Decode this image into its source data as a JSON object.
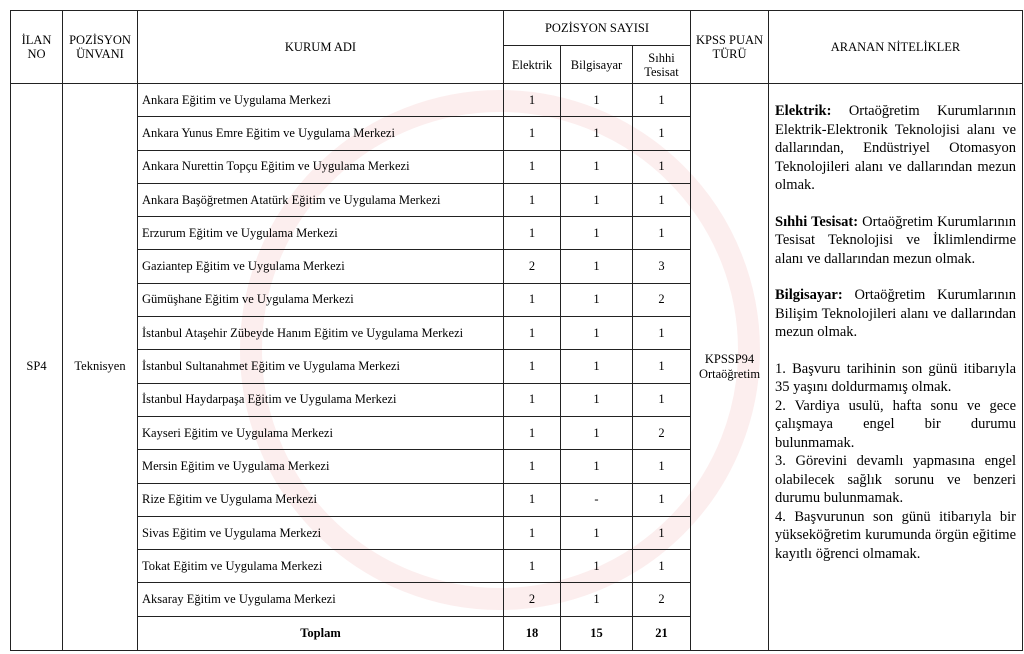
{
  "headers": {
    "ilan_no": "İLAN NO",
    "pozisyon_unvani": "POZİSYON ÜNVANI",
    "kurum_adi": "KURUM ADI",
    "pozisyon_sayisi": "POZİSYON SAYISI",
    "elektrik": "Elektrik",
    "bilgisayar": "Bilgisayar",
    "sihhi_tesisat": "Sıhhi Tesisat",
    "kpss": "KPSS PUAN TÜRÜ",
    "nitelikler": "ARANAN NİTELİKLER"
  },
  "ilan_no": "SP4",
  "pozisyon": "Teknisyen",
  "kpss": "KPSSP94 Ortaöğretim",
  "rows": [
    {
      "kurum": "Ankara Eğitim ve Uygulama Merkezi",
      "elektrik": "1",
      "bilgisayar": "1",
      "sihhi": "1"
    },
    {
      "kurum": "Ankara Yunus Emre Eğitim ve Uygulama Merkezi",
      "elektrik": "1",
      "bilgisayar": "1",
      "sihhi": "1"
    },
    {
      "kurum": "Ankara Nurettin Topçu Eğitim ve Uygulama Merkezi",
      "elektrik": "1",
      "bilgisayar": "1",
      "sihhi": "1"
    },
    {
      "kurum": "Ankara Başöğretmen Atatürk Eğitim ve Uygulama Merkezi",
      "elektrik": "1",
      "bilgisayar": "1",
      "sihhi": "1"
    },
    {
      "kurum": "Erzurum Eğitim ve Uygulama Merkezi",
      "elektrik": "1",
      "bilgisayar": "1",
      "sihhi": "1"
    },
    {
      "kurum": "Gaziantep Eğitim ve Uygulama Merkezi",
      "elektrik": "2",
      "bilgisayar": "1",
      "sihhi": "3"
    },
    {
      "kurum": "Gümüşhane Eğitim ve Uygulama Merkezi",
      "elektrik": "1",
      "bilgisayar": "1",
      "sihhi": "2"
    },
    {
      "kurum": "İstanbul Ataşehir Zübeyde Hanım Eğitim ve Uygulama Merkezi",
      "elektrik": "1",
      "bilgisayar": "1",
      "sihhi": "1"
    },
    {
      "kurum": "İstanbul Sultanahmet Eğitim ve Uygulama Merkezi",
      "elektrik": "1",
      "bilgisayar": "1",
      "sihhi": "1"
    },
    {
      "kurum": "İstanbul Haydarpaşa Eğitim ve Uygulama Merkezi",
      "elektrik": "1",
      "bilgisayar": "1",
      "sihhi": "1"
    },
    {
      "kurum": "Kayseri Eğitim ve Uygulama Merkezi",
      "elektrik": "1",
      "bilgisayar": "1",
      "sihhi": "2"
    },
    {
      "kurum": "Mersin Eğitim ve Uygulama Merkezi",
      "elektrik": "1",
      "bilgisayar": "1",
      "sihhi": "1"
    },
    {
      "kurum": "Rize Eğitim ve Uygulama Merkezi",
      "elektrik": "1",
      "bilgisayar": "-",
      "sihhi": "1"
    },
    {
      "kurum": "Sivas Eğitim ve Uygulama Merkezi",
      "elektrik": "1",
      "bilgisayar": "1",
      "sihhi": "1"
    },
    {
      "kurum": "Tokat Eğitim ve Uygulama Merkezi",
      "elektrik": "1",
      "bilgisayar": "1",
      "sihhi": "1"
    },
    {
      "kurum": "Aksaray Eğitim ve Uygulama Merkezi",
      "elektrik": "2",
      "bilgisayar": "1",
      "sihhi": "2"
    }
  ],
  "total": {
    "label": "Toplam",
    "elektrik": "18",
    "bilgisayar": "15",
    "sihhi": "21"
  },
  "nitelikler": {
    "elektrik_label": "Elektrik:",
    "elektrik_text": " Ortaöğretim Kurumlarının Elektrik-Elektronik Teknolojisi alanı ve dallarından, Endüstriyel Otomasyon Teknolojileri alanı ve dallarından mezun olmak.",
    "sihhi_label": "Sıhhi Tesisat:",
    "sihhi_text": " Ortaöğretim Kurumlarının Tesisat Teknolojisi ve İklimlendirme alanı ve dallarından mezun olmak.",
    "bilgisayar_label": "Bilgisayar:",
    "bilgisayar_text": " Ortaöğretim Kurumlarının Bilişim Teknolojileri alanı ve dallarından mezun olmak.",
    "items": [
      "1. Başvuru tarihinin son günü itibarıyla 35 yaşını doldurmamış olmak.",
      "2. Vardiya usulü, hafta sonu ve gece çalışmaya engel bir durumu bulunmamak.",
      "3. Görevini devamlı yapmasına engel olabilecek sağlık sorunu ve benzeri durumu bulunmamak.",
      "4. Başvurunun son günü itibarıyla bir yükseköğretim kurumunda örgün eğitime kayıtlı öğrenci olmamak."
    ]
  }
}
